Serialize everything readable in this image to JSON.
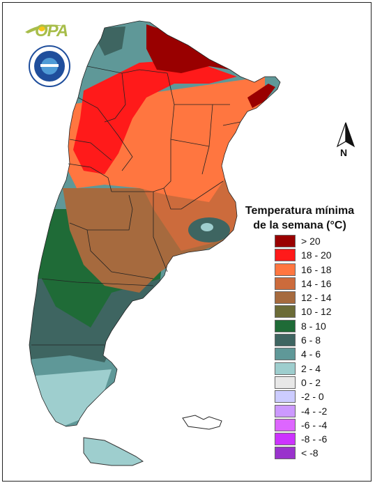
{
  "logo": {
    "text": "OPA"
  },
  "north_arrow": {
    "label": "N"
  },
  "legend": {
    "title_line1": "Temperatura mínima",
    "title_line2": "de la semana (°C)",
    "items": [
      {
        "label": "> 20",
        "color": "#990000"
      },
      {
        "label": "18 - 20",
        "color": "#ff1a1a"
      },
      {
        "label": "16 - 18",
        "color": "#ff7640"
      },
      {
        "label": "14 - 16",
        "color": "#cc6b3c"
      },
      {
        "label": "12 - 14",
        "color": "#a66a3e"
      },
      {
        "label": "10 - 12",
        "color": "#6b6b37"
      },
      {
        "label": "8 - 10",
        "color": "#1f6b37"
      },
      {
        "label": "6 - 8",
        "color": "#3e6561"
      },
      {
        "label": "4 - 6",
        "color": "#5f9898"
      },
      {
        "label": "2 - 4",
        "color": "#9ecece"
      },
      {
        "label": "0 - 2",
        "color": "#e8e8e8"
      },
      {
        "label": "-2 - 0",
        "color": "#ccccff"
      },
      {
        "label": "-4 - -2",
        "color": "#cc99ff"
      },
      {
        "label": "-6 - -4",
        "color": "#dd66ff"
      },
      {
        "label": "-8 - -6",
        "color": "#cc33ff"
      },
      {
        "label": "< -8",
        "color": "#9933cc"
      }
    ]
  }
}
